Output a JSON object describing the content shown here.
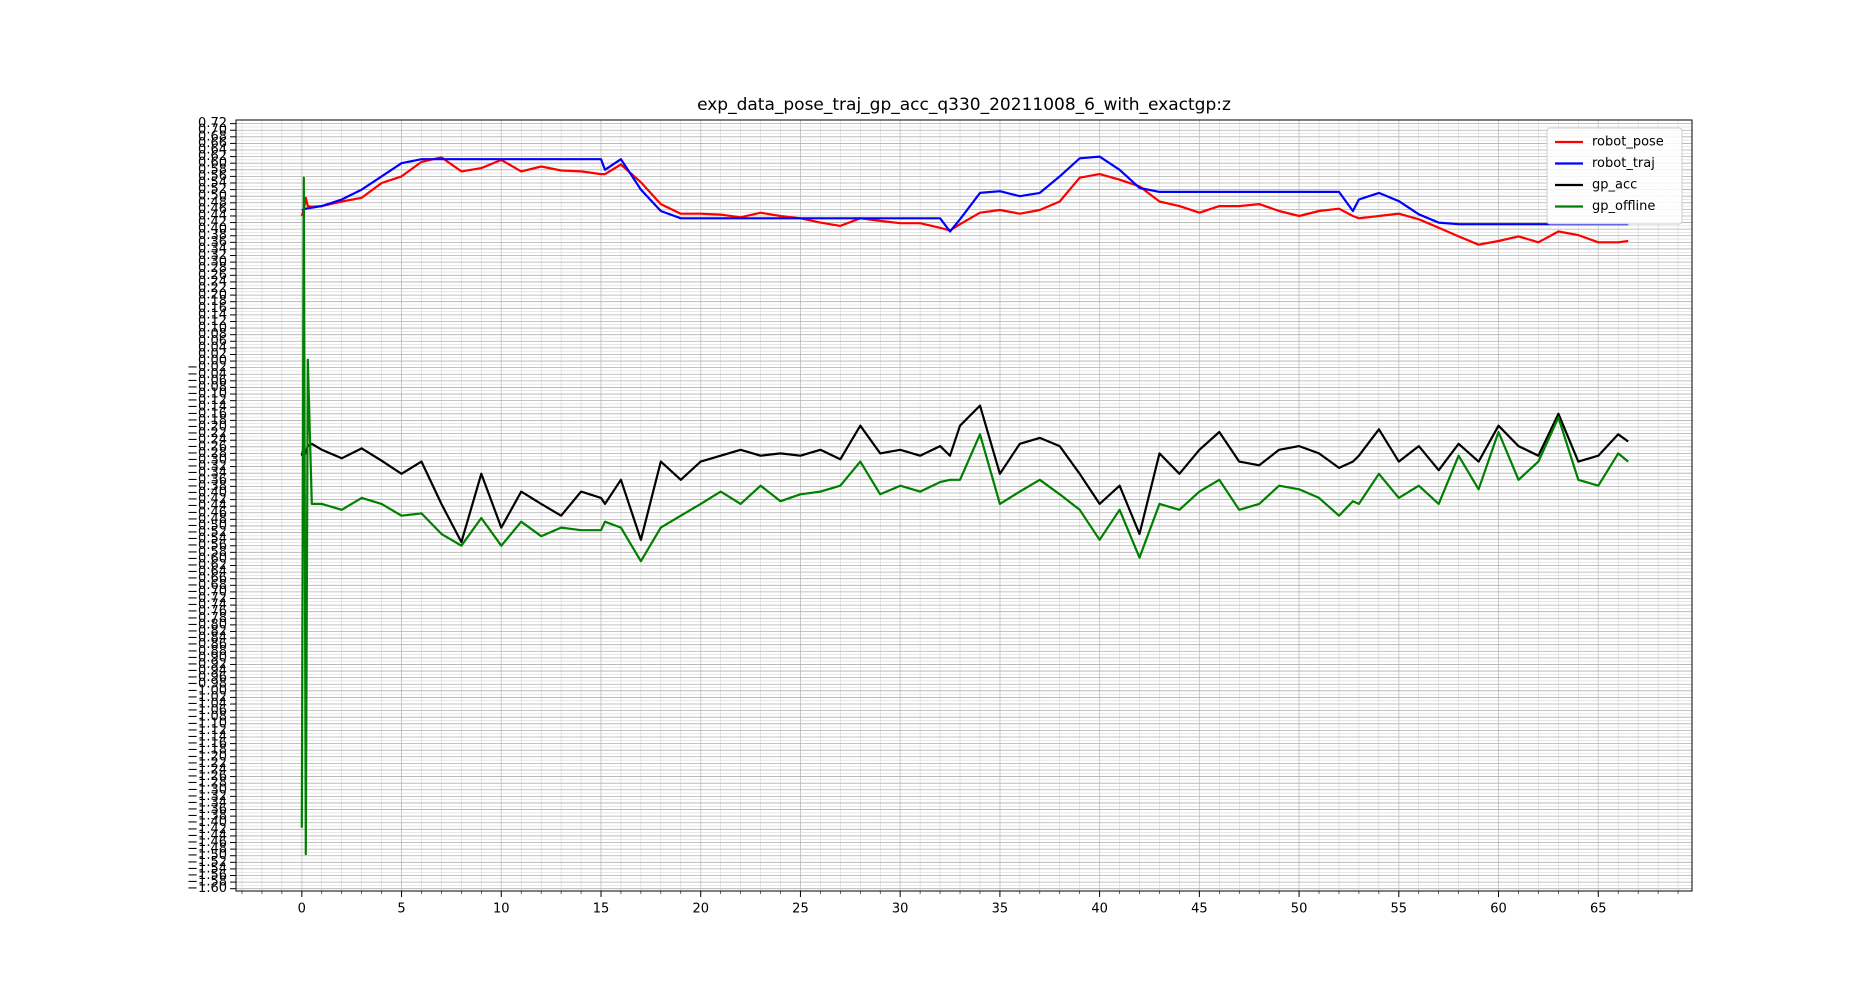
{
  "chart_data": {
    "type": "line",
    "title": "exp_data_pose_traj_gp_acc_q330_20211008_6_with_exactgp:z",
    "x": [
      0,
      0.1,
      0.2,
      0.3,
      0.5,
      1,
      2,
      3,
      4,
      5,
      6,
      7,
      8,
      9,
      10,
      11,
      12,
      13,
      14,
      15,
      15.2,
      16,
      17,
      18,
      19,
      20,
      21,
      22,
      23,
      24,
      25,
      26,
      27,
      28,
      29,
      30,
      31,
      32,
      32.5,
      33,
      34,
      35,
      36,
      37,
      38,
      39,
      40,
      41,
      42,
      43,
      44,
      45,
      46,
      47,
      48,
      49,
      50,
      51,
      52,
      52.7,
      53,
      54,
      55,
      56,
      57,
      58,
      59,
      60,
      61,
      62,
      63,
      64,
      65,
      66,
      66.5
    ],
    "series": [
      {
        "name": "robot_pose",
        "color": "#ff0000",
        "values": [
          0.44,
          0.46,
          0.495,
          0.47,
          0.468,
          0.47,
          0.484,
          0.495,
          0.54,
          0.56,
          0.604,
          0.618,
          0.575,
          0.585,
          0.61,
          0.575,
          0.59,
          0.578,
          0.575,
          0.567,
          0.567,
          0.596,
          0.542,
          0.476,
          0.447,
          0.447,
          0.444,
          0.436,
          0.45,
          0.44,
          0.433,
          0.42,
          0.41,
          0.433,
          0.425,
          0.418,
          0.418,
          0.404,
          0.396,
          0.415,
          0.45,
          0.458,
          0.447,
          0.458,
          0.484,
          0.556,
          0.567,
          0.55,
          0.53,
          0.484,
          0.47,
          0.45,
          0.47,
          0.47,
          0.476,
          0.455,
          0.44,
          0.455,
          0.462,
          0.44,
          0.433,
          0.44,
          0.447,
          0.43,
          0.404,
          0.378,
          0.353,
          0.364,
          0.378,
          0.36,
          0.393,
          0.382,
          0.36,
          0.36,
          0.364
        ]
      },
      {
        "name": "robot_traj",
        "color": "#0000ff",
        "values": [
          0.458,
          0.46,
          0.462,
          0.463,
          0.465,
          0.47,
          0.49,
          0.52,
          0.56,
          0.6,
          0.612,
          0.612,
          0.612,
          0.612,
          0.612,
          0.612,
          0.612,
          0.612,
          0.612,
          0.612,
          0.58,
          0.612,
          0.52,
          0.455,
          0.433,
          0.433,
          0.433,
          0.433,
          0.433,
          0.433,
          0.433,
          0.433,
          0.433,
          0.433,
          0.433,
          0.433,
          0.433,
          0.433,
          0.393,
          0.43,
          0.51,
          0.515,
          0.5,
          0.51,
          0.56,
          0.615,
          0.62,
          0.58,
          0.525,
          0.513,
          0.513,
          0.513,
          0.513,
          0.513,
          0.513,
          0.513,
          0.513,
          0.513,
          0.513,
          0.455,
          0.49,
          0.51,
          0.485,
          0.445,
          0.42,
          0.415,
          0.415,
          0.415,
          0.415,
          0.415,
          0.415,
          0.415,
          0.415,
          0.415,
          0.415
        ]
      },
      {
        "name": "gp_acc",
        "color": "#000000",
        "values": [
          -0.287,
          -0.258,
          -0.28,
          -0.258,
          -0.251,
          -0.269,
          -0.295,
          -0.265,
          -0.302,
          -0.342,
          -0.305,
          -0.433,
          -0.549,
          -0.342,
          -0.505,
          -0.396,
          -0.433,
          -0.469,
          -0.396,
          -0.415,
          -0.433,
          -0.36,
          -0.542,
          -0.305,
          -0.36,
          -0.305,
          -0.287,
          -0.269,
          -0.287,
          -0.28,
          -0.287,
          -0.269,
          -0.298,
          -0.196,
          -0.28,
          -0.269,
          -0.287,
          -0.258,
          -0.287,
          -0.196,
          -0.135,
          -0.342,
          -0.251,
          -0.233,
          -0.258,
          -0.342,
          -0.433,
          -0.378,
          -0.524,
          -0.28,
          -0.342,
          -0.269,
          -0.215,
          -0.305,
          -0.316,
          -0.269,
          -0.258,
          -0.28,
          -0.324,
          -0.305,
          -0.287,
          -0.207,
          -0.305,
          -0.258,
          -0.331,
          -0.251,
          -0.305,
          -0.196,
          -0.258,
          -0.287,
          -0.16,
          -0.305,
          -0.287,
          -0.222,
          -0.244
        ]
      },
      {
        "name": "gp_offline",
        "color": "#008000",
        "values": [
          -1.415,
          0.556,
          -1.495,
          0.004,
          -0.433,
          -0.433,
          -0.451,
          -0.415,
          -0.433,
          -0.469,
          -0.462,
          -0.524,
          -0.56,
          -0.476,
          -0.56,
          -0.487,
          -0.531,
          -0.505,
          -0.513,
          -0.513,
          -0.487,
          -0.505,
          -0.607,
          -0.505,
          -0.469,
          -0.433,
          -0.396,
          -0.433,
          -0.378,
          -0.425,
          -0.404,
          -0.396,
          -0.378,
          -0.305,
          -0.404,
          -0.378,
          -0.396,
          -0.367,
          -0.36,
          -0.36,
          -0.222,
          -0.433,
          -0.396,
          -0.36,
          -0.404,
          -0.451,
          -0.542,
          -0.451,
          -0.596,
          -0.433,
          -0.451,
          -0.396,
          -0.36,
          -0.451,
          -0.433,
          -0.378,
          -0.389,
          -0.415,
          -0.469,
          -0.425,
          -0.433,
          -0.342,
          -0.415,
          -0.378,
          -0.433,
          -0.287,
          -0.389,
          -0.215,
          -0.36,
          -0.305,
          -0.171,
          -0.36,
          -0.378,
          -0.28,
          -0.305
        ]
      }
    ],
    "xlim": [
      -3.3,
      69.7
    ],
    "xticks": [
      0,
      5,
      10,
      15,
      20,
      25,
      30,
      35,
      40,
      45,
      50,
      55,
      60,
      65
    ],
    "ylim": [
      -1.607,
      0.731
    ],
    "yticks": [
      0.72,
      {
        "value": 0.7,
        "label": "0.70"
      },
      0.68,
      0.66,
      0.64,
      0.62,
      {
        "value": 0.6,
        "label": "0.60"
      },
      0.58,
      0.56,
      0.54,
      0.52,
      {
        "value": 0.5,
        "label": "0.50"
      },
      0.48,
      0.46,
      0.44,
      0.42,
      {
        "value": 0.4,
        "label": "0.40"
      },
      0.38,
      0.36,
      0.34,
      0.32,
      {
        "value": 0.3,
        "label": "0.30"
      },
      0.28,
      0.26,
      0.24,
      0.22,
      {
        "value": 0.2,
        "label": "0.20"
      },
      0.18,
      0.16,
      0.14,
      0.12,
      {
        "value": 0.1,
        "label": "0.10"
      },
      0.08,
      0.06,
      0.04,
      0.02,
      {
        "value": 0,
        "label": "0.00"
      },
      {
        "value": -0.02,
        "label": "−0.02"
      },
      {
        "value": -0.04,
        "label": "−0.04"
      },
      {
        "value": -0.06,
        "label": "−0.06"
      },
      {
        "value": -0.08,
        "label": "−0.08"
      },
      {
        "value": -0.1,
        "label": "−0.10"
      },
      {
        "value": -0.12,
        "label": "−0.12"
      },
      {
        "value": -0.14,
        "label": "−0.14"
      },
      {
        "value": -0.16,
        "label": "−0.16"
      },
      {
        "value": -0.18,
        "label": "−0.18"
      },
      {
        "value": -0.2,
        "label": "−0.20"
      },
      {
        "value": -0.22,
        "label": "−0.22"
      },
      {
        "value": -0.24,
        "label": "−0.24"
      },
      {
        "value": -0.26,
        "label": "−0.26"
      },
      {
        "value": -0.28,
        "label": "−0.28"
      },
      {
        "value": -0.3,
        "label": "−0.30"
      },
      {
        "value": -0.32,
        "label": "−0.32"
      },
      {
        "value": -0.34,
        "label": "−0.34"
      },
      {
        "value": -0.36,
        "label": "−0.36"
      },
      {
        "value": -0.38,
        "label": "−0.38"
      },
      {
        "value": -0.4,
        "label": "−0.40"
      },
      {
        "value": -0.42,
        "label": "−0.42"
      },
      {
        "value": -0.44,
        "label": "−0.44"
      },
      {
        "value": -0.46,
        "label": "−0.46"
      },
      {
        "value": -0.48,
        "label": "−0.48"
      },
      {
        "value": -0.5,
        "label": "−0.50"
      },
      {
        "value": -0.52,
        "label": "−0.52"
      },
      {
        "value": -0.54,
        "label": "−0.54"
      },
      {
        "value": -0.56,
        "label": "−0.56"
      },
      {
        "value": -0.58,
        "label": "−0.58"
      },
      {
        "value": -0.6,
        "label": "−0.60"
      },
      {
        "value": -0.62,
        "label": "−0.62"
      },
      {
        "value": -0.64,
        "label": "−0.64"
      },
      {
        "value": -0.66,
        "label": "−0.66"
      },
      {
        "value": -0.68,
        "label": "−0.68"
      },
      {
        "value": -0.7,
        "label": "−0.70"
      },
      {
        "value": -0.72,
        "label": "−0.72"
      },
      {
        "value": -0.74,
        "label": "−0.74"
      },
      {
        "value": -0.76,
        "label": "−0.76"
      },
      {
        "value": -0.78,
        "label": "−0.78"
      },
      {
        "value": -0.8,
        "label": "−0.80"
      },
      {
        "value": -0.82,
        "label": "−0.82"
      },
      {
        "value": -0.84,
        "label": "−0.84"
      },
      {
        "value": -0.86,
        "label": "−0.86"
      },
      {
        "value": -0.88,
        "label": "−0.88"
      },
      {
        "value": -0.9,
        "label": "−0.90"
      },
      {
        "value": -0.92,
        "label": "−0.92"
      },
      {
        "value": -0.94,
        "label": "−0.94"
      },
      {
        "value": -0.96,
        "label": "−0.96"
      },
      {
        "value": -0.98,
        "label": "−0.98"
      },
      {
        "value": -1,
        "label": "−1.00"
      },
      {
        "value": -1.02,
        "label": "−1.02"
      },
      {
        "value": -1.04,
        "label": "−1.04"
      },
      {
        "value": -1.06,
        "label": "−1.06"
      },
      {
        "value": -1.08,
        "label": "−1.08"
      },
      {
        "value": -1.1,
        "label": "−1.10"
      },
      {
        "value": -1.12,
        "label": "−1.12"
      },
      {
        "value": -1.14,
        "label": "−1.14"
      },
      {
        "value": -1.16,
        "label": "−1.16"
      },
      {
        "value": -1.18,
        "label": "−1.18"
      },
      {
        "value": -1.2,
        "label": "−1.20"
      },
      {
        "value": -1.22,
        "label": "−1.22"
      },
      {
        "value": -1.24,
        "label": "−1.24"
      },
      {
        "value": -1.26,
        "label": "−1.26"
      },
      {
        "value": -1.28,
        "label": "−1.28"
      },
      {
        "value": -1.3,
        "label": "−1.30"
      },
      {
        "value": -1.32,
        "label": "−1.32"
      },
      {
        "value": -1.34,
        "label": "−1.34"
      },
      {
        "value": -1.36,
        "label": "−1.36"
      },
      {
        "value": -1.38,
        "label": "−1.38"
      },
      {
        "value": -1.4,
        "label": "−1.40"
      },
      {
        "value": -1.42,
        "label": "−1.42"
      },
      {
        "value": -1.44,
        "label": "−1.44"
      },
      {
        "value": -1.46,
        "label": "−1.46"
      },
      {
        "value": -1.48,
        "label": "−1.48"
      },
      {
        "value": -1.5,
        "label": "−1.50"
      },
      {
        "value": -1.52,
        "label": "−1.52"
      },
      {
        "value": -1.54,
        "label": "−1.54"
      },
      {
        "value": -1.56,
        "label": "−1.56"
      },
      {
        "value": -1.58,
        "label": "−1.58"
      },
      {
        "value": -1.6,
        "label": "−1.60"
      }
    ],
    "grid": true,
    "minor_grid": true,
    "legend": "upper right"
  }
}
